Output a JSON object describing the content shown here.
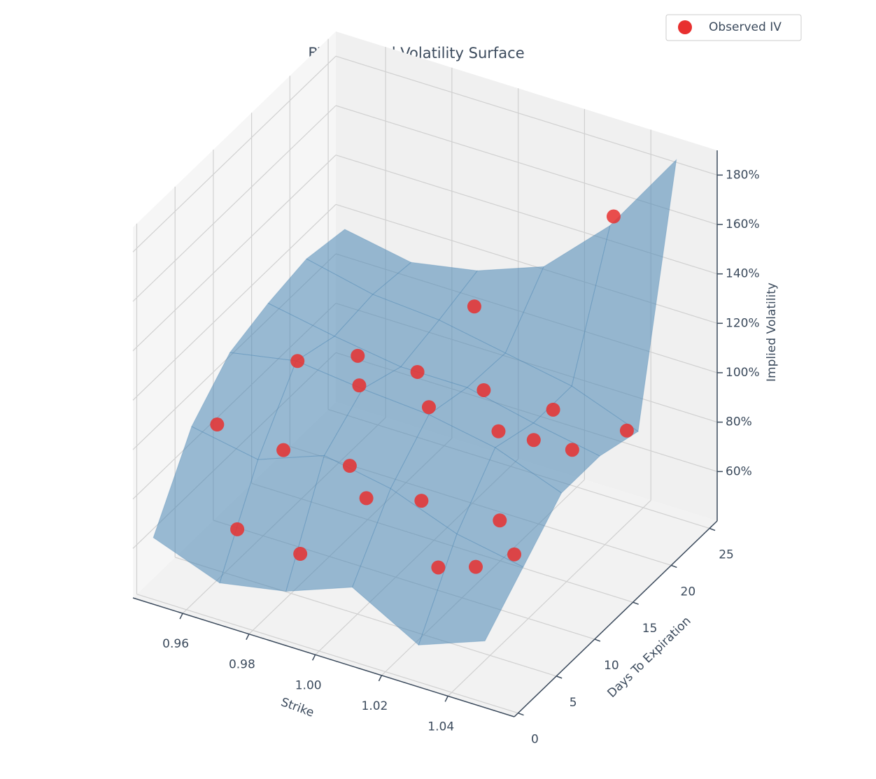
{
  "chart_data": {
    "type": "surface3d",
    "title": "BTC Implied Volatility Surface",
    "xlabel": "Strike",
    "ylabel": "Days To Expiration",
    "zlabel": "Implied Volatility",
    "xlim": [
      0.945,
      1.06
    ],
    "ylim": [
      -0.5,
      26
    ],
    "zlim": [
      40,
      190
    ],
    "xticks": [
      0.96,
      0.98,
      {
        "value": 1,
        "label": "1.00"
      },
      1.02,
      1.04
    ],
    "yticks": [
      0,
      5,
      10,
      15,
      20,
      25
    ],
    "zticks": [
      {
        "value": 60,
        "label": "60%"
      },
      {
        "value": 80,
        "label": "80%"
      },
      {
        "value": 100,
        "label": "100%"
      },
      {
        "value": 120,
        "label": "120%"
      },
      {
        "value": 140,
        "label": "140%"
      },
      {
        "value": 160,
        "label": "160%"
      },
      {
        "value": 180,
        "label": "180%"
      }
    ],
    "grid": true,
    "legend": "upper right",
    "surface": {
      "color": "#4a86b4",
      "x": [
        0.95,
        0.97,
        0.99,
        1.01,
        1.03,
        1.05
      ],
      "y": [
        0,
        5,
        10,
        15,
        20,
        25
      ],
      "z": [
        [
          65,
          55,
          60,
          70,
          55,
          65
        ],
        [
          95,
          90,
          100,
          95,
          85,
          80
        ],
        [
          110,
          115,
          112,
          110,
          105,
          95
        ],
        [
          115,
          110,
          106,
          106,
          100,
          95
        ],
        [
          118,
          112,
          110,
          105,
          100,
          90
        ],
        [
          115,
          110,
          115,
          125,
          150,
          185
        ]
      ]
    },
    "series": [
      {
        "name": "Observed IV",
        "color": "#e8302f",
        "x": [
          0.96,
          0.98,
          0.975,
          1.0,
          0.989,
          1.005,
          0.995,
          1.017,
          1.01,
          1.015,
          1.031,
          1.036,
          1.037,
          1.029,
          1.044,
          1.042,
          1.038,
          0.996,
          0.992,
          1.029,
          1.038,
          1.045,
          0.973,
          0.977
        ],
        "y": [
          4,
          4,
          8,
          4,
          10,
          4,
          15,
          6,
          10,
          15,
          10,
          8,
          12,
          18,
          14,
          22,
          22,
          22,
          1,
          3,
          4,
          6,
          1,
          15
        ],
        "z": [
          103,
          101,
          123,
          103,
          113,
          92,
          106,
          90,
          113,
          107,
          112,
          84,
          105,
          96,
          98,
          81,
          166,
          112,
          73,
          77,
          78,
          80,
          75,
          105
        ]
      }
    ]
  }
}
